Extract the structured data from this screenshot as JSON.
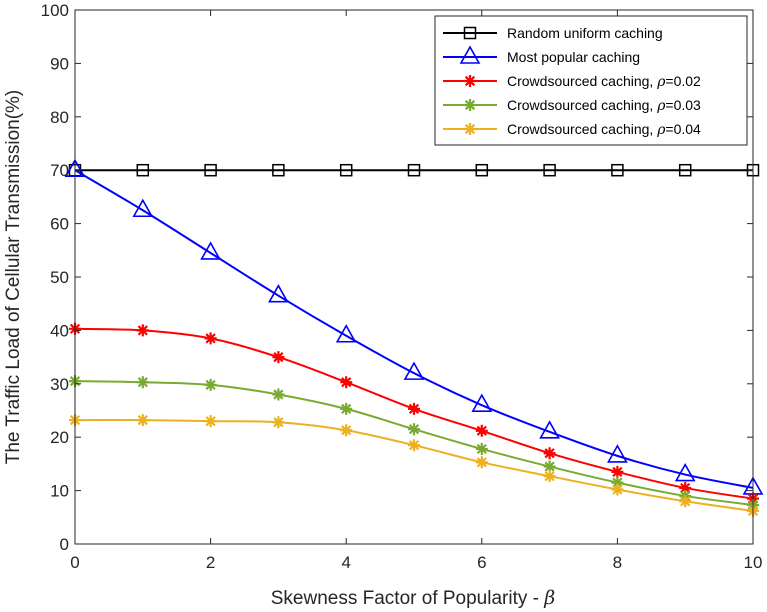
{
  "chart_data": {
    "type": "line",
    "title": "",
    "xlabel": "Skewness Factor of Popularity - ",
    "xlabel_symbol": "β",
    "ylabel": "The Traffic Load of Cellular Transmission(%)",
    "xlim": [
      0,
      10
    ],
    "ylim": [
      0,
      100
    ],
    "xticks": [
      "0",
      "2",
      "4",
      "6",
      "8",
      "10"
    ],
    "yticks": [
      "0",
      "10",
      "20",
      "30",
      "40",
      "50",
      "60",
      "70",
      "80",
      "90",
      "100"
    ],
    "grid": false,
    "legend_position": "top-right",
    "x": [
      0,
      1,
      2,
      3,
      4,
      5,
      6,
      7,
      8,
      9,
      10
    ],
    "series": [
      {
        "name": "Random uniform caching",
        "color": "#000000",
        "marker": "square",
        "values": [
          70,
          70,
          70,
          70,
          70,
          70,
          70,
          70,
          70,
          70,
          70
        ]
      },
      {
        "name": "Most popular caching",
        "color": "#0000ff",
        "marker": "triangle",
        "values": [
          70,
          62.5,
          54.5,
          46.5,
          39,
          32,
          26,
          21,
          16.5,
          13,
          10.5
        ]
      },
      {
        "name": "Crowdsourced caching, ",
        "symbol": "ρ",
        "suffix": "=0.02",
        "color": "#ff0000",
        "marker": "asterisk",
        "values": [
          40.3,
          40,
          38.5,
          35,
          30.3,
          25.3,
          21.2,
          17,
          13.5,
          10.5,
          8.5
        ]
      },
      {
        "name": "Crowdsourced caching, ",
        "symbol": "ρ",
        "suffix": "=0.03",
        "color": "#77ac30",
        "marker": "asterisk",
        "values": [
          30.5,
          30.3,
          29.8,
          28,
          25.3,
          21.5,
          17.8,
          14.5,
          11.5,
          9,
          7.3
        ]
      },
      {
        "name": "Crowdsourced caching, ",
        "symbol": "ρ",
        "suffix": "=0.04",
        "color": "#edb120",
        "marker": "asterisk",
        "values": [
          23.2,
          23.2,
          23,
          22.8,
          21.3,
          18.5,
          15.3,
          12.7,
          10.2,
          8,
          6.2
        ]
      }
    ]
  }
}
